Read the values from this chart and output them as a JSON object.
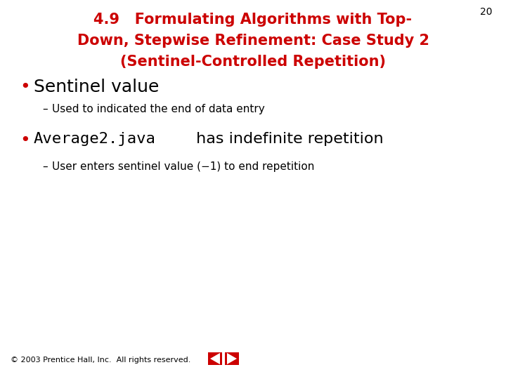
{
  "title_line1": "4.9   Formulating Algorithms with Top-",
  "title_line2": "Down, Stepwise Refinement: Case Study 2",
  "title_line3": "(Sentinel-Controlled Repetition)",
  "title_color": "#cc0000",
  "bullet1_text": "Sentinel value",
  "sub1_text": "Used to indicated the end of data entry",
  "bullet2_mono": "Average2.java",
  "bullet2_rest": " has indefinite repetition",
  "sub2_text": "User enters sentinel value (−1) to end repetition",
  "page_number": "20",
  "footer_text": "© 2003 Prentice Hall, Inc.  All rights reserved.",
  "bg_color": "#ffffff",
  "text_color": "#000000",
  "bullet_color": "#cc0000",
  "red_btn": "#cc0000"
}
